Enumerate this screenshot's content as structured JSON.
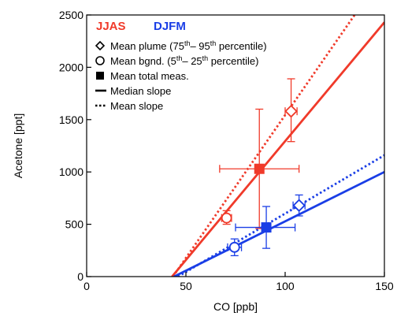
{
  "chart_data": {
    "type": "scatter",
    "xlabel": "CO [ppb]",
    "ylabel": "Acetone [ppt]",
    "xlim": [
      0,
      150
    ],
    "ylim": [
      0,
      2500
    ],
    "x_ticks": [
      0,
      50,
      100,
      150
    ],
    "y_ticks": [
      0,
      500,
      1000,
      1500,
      2000,
      2500
    ],
    "x_tick_labels": [
      "0",
      "50",
      "100",
      "150"
    ],
    "y_tick_labels": [
      "0",
      "500",
      "1000",
      "1500",
      "2000",
      "2500"
    ],
    "grid": false,
    "series_titles": [
      {
        "text": "JJAS",
        "color": "#f03a2a"
      },
      {
        "text": "DJFM",
        "color": "#1a3ee6"
      }
    ],
    "legend_items": [
      {
        "symbol": "diamond-open",
        "base": "Mean plume (75",
        "sup1": "th",
        "mid": "– 95",
        "sup2": "th",
        "tail": " percentile)"
      },
      {
        "symbol": "circle-open",
        "base": "Mean bgnd. (5",
        "sup1": "th",
        "mid": "– 25",
        "sup2": "th",
        "tail": " percentile)"
      },
      {
        "symbol": "square-filled",
        "base": "Mean total meas.",
        "sup1": "",
        "mid": "",
        "sup2": "",
        "tail": ""
      },
      {
        "symbol": "solid-line",
        "base": "Median slope",
        "sup1": "",
        "mid": "",
        "sup2": "",
        "tail": ""
      },
      {
        "symbol": "dotted-line",
        "base": "Mean slope",
        "sup1": "",
        "mid": "",
        "sup2": "",
        "tail": ""
      }
    ],
    "legend_position": "top-left",
    "series": [
      {
        "name": "JJAS",
        "color": "#f03a2a",
        "points": [
          {
            "kind": "plume",
            "marker": "diamond-open",
            "x": 103,
            "y": 1580,
            "x_err": [
              100,
              106
            ],
            "y_err": [
              1290,
              1890
            ]
          },
          {
            "kind": "background",
            "marker": "circle-open",
            "x": 70.5,
            "y": 560,
            "x_err": [
              68,
              73
            ],
            "y_err": [
              500,
              630
            ]
          },
          {
            "kind": "total",
            "marker": "square-filled",
            "x": 87,
            "y": 1030,
            "x_err": [
              67,
              107
            ],
            "y_err": [
              460,
              1600
            ]
          }
        ],
        "median_slope": {
          "x": [
            43,
            150
          ],
          "y": [
            0,
            2430
          ]
        },
        "mean_slope": {
          "x": [
            43.5,
            135
          ],
          "y": [
            0,
            2500
          ]
        }
      },
      {
        "name": "DJFM",
        "color": "#1a3ee6",
        "points": [
          {
            "kind": "plume",
            "marker": "diamond-open",
            "x": 107,
            "y": 680,
            "x_err": [
              104,
              110
            ],
            "y_err": [
              580,
              780
            ]
          },
          {
            "kind": "background",
            "marker": "circle-open",
            "x": 74.5,
            "y": 280,
            "x_err": [
              71,
              78
            ],
            "y_err": [
              200,
              360
            ]
          },
          {
            "kind": "total",
            "marker": "square-filled",
            "x": 90.5,
            "y": 470,
            "x_err": [
              75,
              105
            ],
            "y_err": [
              270,
              670
            ]
          }
        ],
        "median_slope": {
          "x": [
            44,
            150
          ],
          "y": [
            0,
            1000
          ]
        },
        "mean_slope": {
          "x": [
            46,
            150
          ],
          "y": [
            0,
            1160
          ]
        }
      }
    ]
  }
}
